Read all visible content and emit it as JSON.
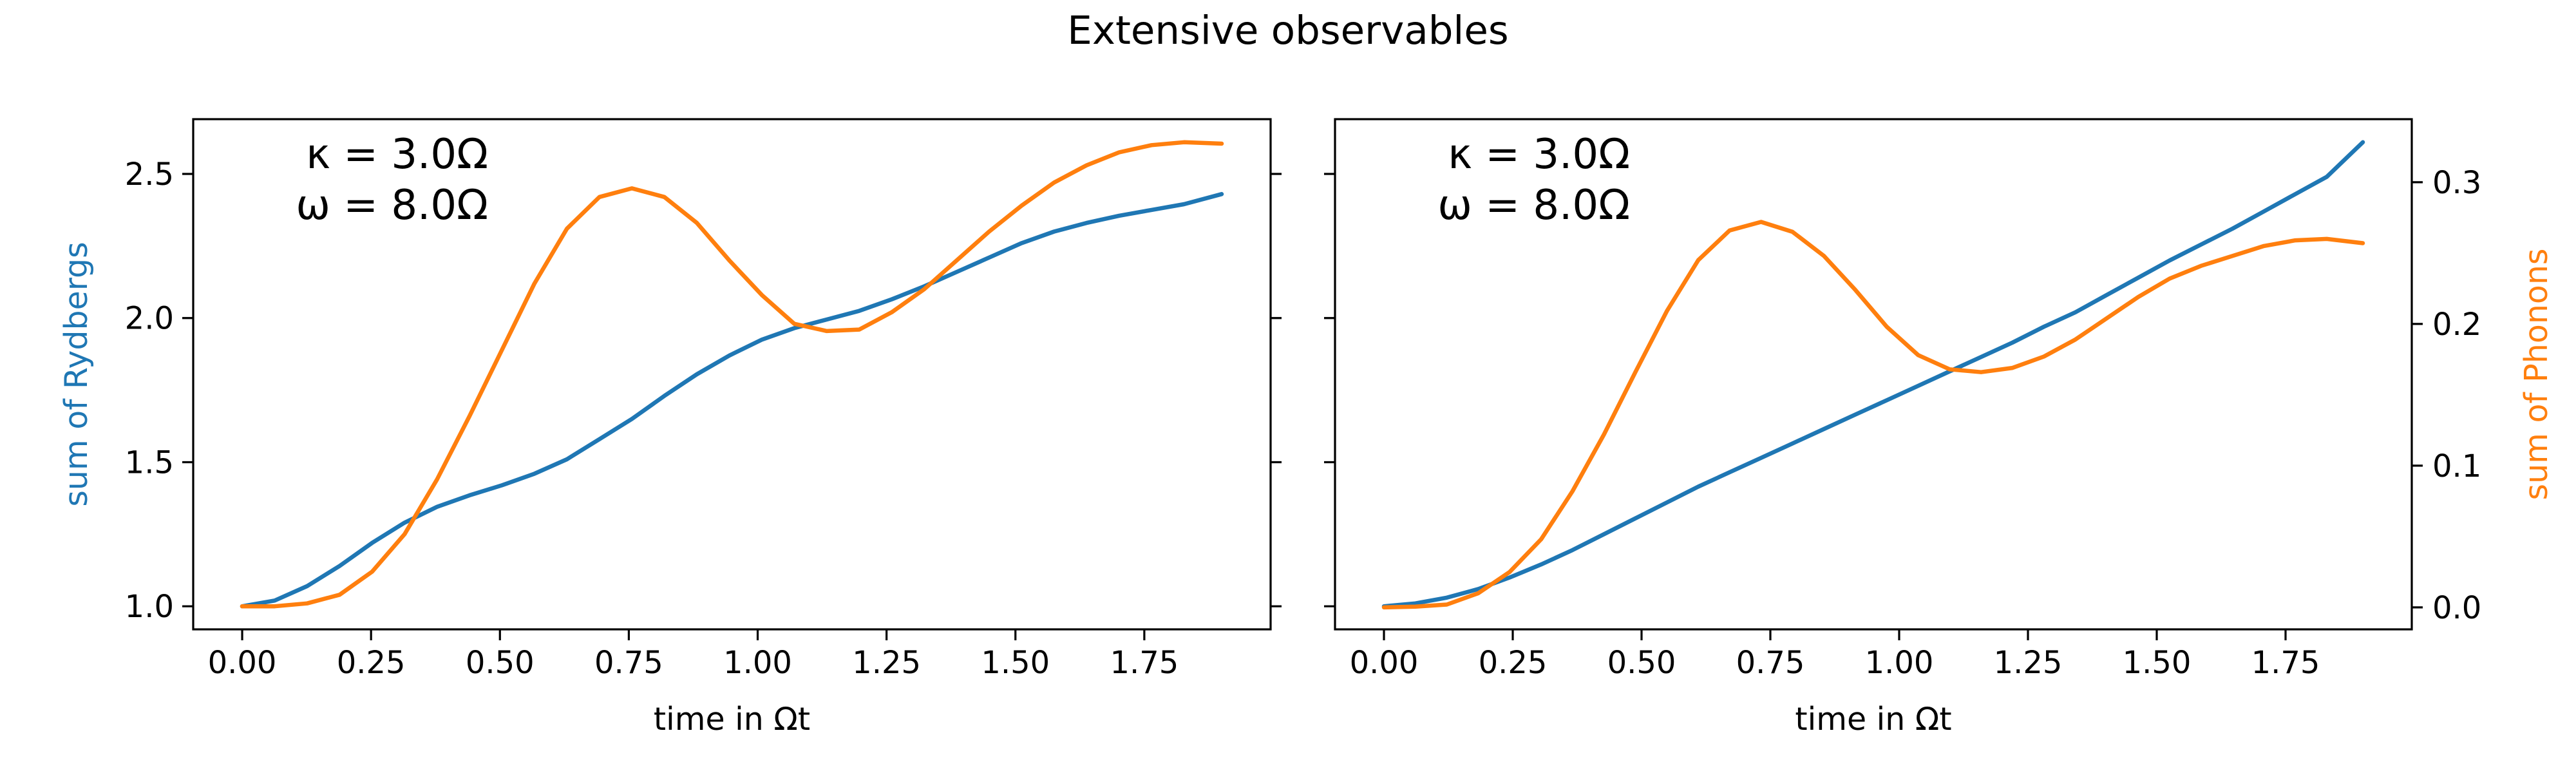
{
  "suptitle": "Extensive observables",
  "colors": {
    "blue": "#1f77b4",
    "orange": "#ff7f0e",
    "axis": "#000000"
  },
  "chart_data": [
    {
      "type": "line",
      "panel": "left",
      "annotation": [
        "κ = 3.0Ω",
        "ω = 8.0Ω"
      ],
      "xlabel": "time in Ωt",
      "ylabel": "sum of Rydbergs",
      "ylabel_color": "#1f77b4",
      "xlim": [
        -0.095,
        1.995
      ],
      "ylim": [
        0.92,
        2.69
      ],
      "xticks": [
        0.0,
        0.25,
        0.5,
        0.75,
        1.0,
        1.25,
        1.5,
        1.75
      ],
      "xtick_labels": [
        "0.00",
        "0.25",
        "0.50",
        "0.75",
        "1.00",
        "1.25",
        "1.50",
        "1.75"
      ],
      "yticks": [
        1.0,
        1.5,
        2.0,
        2.5
      ],
      "ytick_labels": [
        "1.0",
        "1.5",
        "2.0",
        "2.5"
      ],
      "right_ticks_unlabeled": [
        2.5,
        2.0,
        1.5,
        1.0
      ],
      "x": [
        0.0,
        0.063,
        0.126,
        0.189,
        0.252,
        0.315,
        0.378,
        0.441,
        0.504,
        0.567,
        0.63,
        0.693,
        0.756,
        0.819,
        0.882,
        0.945,
        1.008,
        1.071,
        1.134,
        1.197,
        1.26,
        1.323,
        1.386,
        1.449,
        1.512,
        1.575,
        1.638,
        1.701,
        1.764,
        1.827,
        1.9
      ],
      "series": [
        {
          "color": "#1f77b4",
          "axis": "left",
          "values": [
            1.0,
            1.02,
            1.07,
            1.14,
            1.22,
            1.29,
            1.345,
            1.385,
            1.42,
            1.46,
            1.51,
            1.58,
            1.65,
            1.73,
            1.805,
            1.87,
            1.925,
            1.965,
            1.995,
            2.025,
            2.065,
            2.11,
            2.16,
            2.21,
            2.26,
            2.3,
            2.33,
            2.355,
            2.375,
            2.395,
            2.43
          ]
        },
        {
          "color": "#ff7f0e",
          "axis": "left",
          "values": [
            1.0,
            1.0,
            1.01,
            1.04,
            1.12,
            1.25,
            1.44,
            1.66,
            1.89,
            2.12,
            2.31,
            2.42,
            2.45,
            2.42,
            2.33,
            2.2,
            2.08,
            1.98,
            1.955,
            1.96,
            2.02,
            2.1,
            2.2,
            2.3,
            2.39,
            2.47,
            2.53,
            2.575,
            2.6,
            2.61,
            2.605
          ]
        }
      ]
    },
    {
      "type": "line",
      "panel": "right",
      "annotation": [
        "κ = 3.0Ω",
        "ω = 8.0Ω"
      ],
      "xlabel": "time in Ωt",
      "ylabel": "sum of Phonons",
      "ylabel_color": "#ff7f0e",
      "xlim": [
        -0.095,
        1.995
      ],
      "ylim": [
        -0.0155,
        0.3445
      ],
      "xticks": [
        0.0,
        0.25,
        0.5,
        0.75,
        1.0,
        1.25,
        1.5,
        1.75
      ],
      "xtick_labels": [
        "0.00",
        "0.25",
        "0.50",
        "0.75",
        "1.00",
        "1.25",
        "1.50",
        "1.75"
      ],
      "yticks": [
        0.0,
        0.1,
        0.2,
        0.3
      ],
      "ytick_labels": [
        "0.0",
        "0.1",
        "0.2",
        "0.3"
      ],
      "left_ticks_unlabeled": [
        1.0,
        1.5,
        2.0,
        2.5
      ],
      "left_ylim": [
        0.92,
        2.69
      ],
      "x": [
        0.0,
        0.061,
        0.122,
        0.183,
        0.244,
        0.305,
        0.366,
        0.427,
        0.488,
        0.549,
        0.61,
        0.671,
        0.732,
        0.793,
        0.854,
        0.915,
        0.976,
        1.037,
        1.098,
        1.159,
        1.22,
        1.281,
        1.342,
        1.403,
        1.464,
        1.525,
        1.586,
        1.647,
        1.708,
        1.769,
        1.83,
        1.9
      ],
      "series": [
        {
          "color": "#1f77b4",
          "axis": "left",
          "values": [
            1.0,
            1.01,
            1.03,
            1.06,
            1.1,
            1.145,
            1.195,
            1.25,
            1.305,
            1.36,
            1.415,
            1.465,
            1.515,
            1.565,
            1.615,
            1.665,
            1.715,
            1.765,
            1.815,
            1.865,
            1.915,
            1.97,
            2.02,
            2.08,
            2.14,
            2.2,
            2.255,
            2.31,
            2.37,
            2.43,
            2.49,
            2.61
          ]
        },
        {
          "color": "#ff7f0e",
          "axis": "right",
          "values": [
            0.0,
            0.0005,
            0.002,
            0.01,
            0.025,
            0.048,
            0.082,
            0.122,
            0.166,
            0.209,
            0.245,
            0.266,
            0.272,
            0.265,
            0.248,
            0.224,
            0.198,
            0.178,
            0.168,
            0.166,
            0.169,
            0.177,
            0.189,
            0.204,
            0.219,
            0.232,
            0.241,
            0.248,
            0.255,
            0.259,
            0.26,
            0.257
          ]
        }
      ]
    }
  ]
}
